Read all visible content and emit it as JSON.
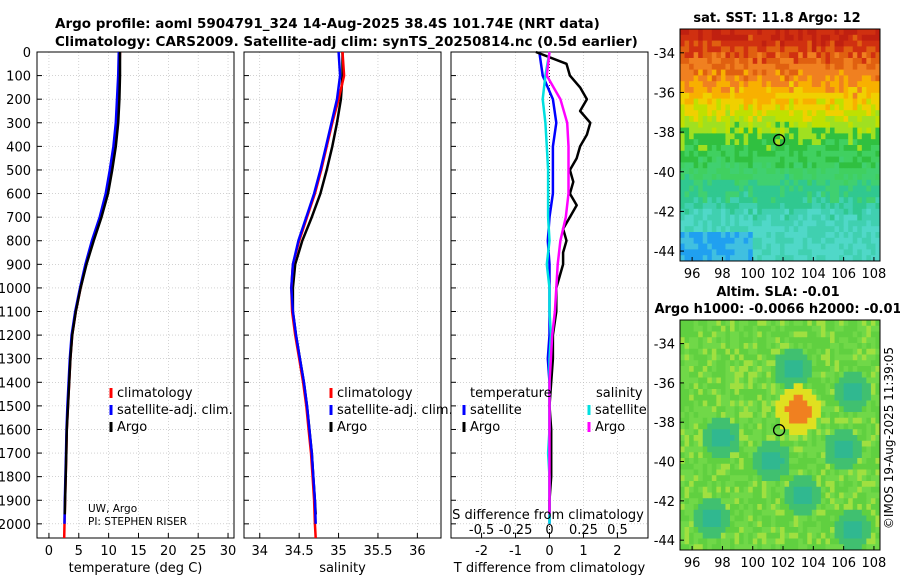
{
  "header": {
    "title_line1": "Argo profile: aoml 5904791_324 14-Aug-2025 38.4S 101.74E (NRT data)",
    "title_line2": "Climatology: CARS2009. Satellite-adj clim: synTS_20250814.nc (0.5d earlier)"
  },
  "colors": {
    "climatology": "#ff0000",
    "satellite": "#0000ff",
    "argo": "#000000",
    "salinity_satellite": "#00e0e0",
    "salinity_argo": "#ff00ff"
  },
  "chart_data": [
    {
      "type": "line",
      "id": "temperature",
      "xlabel": "temperature (deg C)",
      "ylabel": "",
      "xlim": [
        -2,
        31
      ],
      "ylim": [
        2060,
        0
      ],
      "xticks": [
        "0",
        "5",
        "10",
        "15",
        "20",
        "25",
        "30"
      ],
      "yticks": [
        "0",
        "100",
        "200",
        "300",
        "400",
        "500",
        "600",
        "700",
        "800",
        "900",
        "1000",
        "1100",
        "1200",
        "1300",
        "1400",
        "1500",
        "1600",
        "1700",
        "1800",
        "1900",
        "2000"
      ],
      "legend": [
        "climatology",
        "satellite-adj. clim.",
        "Argo"
      ],
      "note_lines": [
        "UW, Argo",
        "PI: STEPHEN RISER"
      ],
      "series": [
        {
          "name": "climatology",
          "depth": [
            0,
            100,
            200,
            300,
            400,
            500,
            600,
            700,
            800,
            900,
            1000,
            1100,
            1200,
            1300,
            1400,
            1500,
            1600,
            1700,
            1800,
            1900,
            2000,
            2060
          ],
          "values": [
            11.9,
            11.8,
            11.6,
            11.3,
            10.9,
            10.3,
            9.6,
            8.6,
            7.3,
            6.2,
            5.3,
            4.5,
            3.9,
            3.6,
            3.4,
            3.2,
            3.0,
            2.9,
            2.8,
            2.7,
            2.6,
            2.55
          ]
        },
        {
          "name": "satellite-adj. clim.",
          "depth": [
            0,
            100,
            200,
            300,
            400,
            500,
            600,
            700,
            800,
            900,
            1000,
            1100,
            1200,
            1300,
            1400,
            1500,
            1600,
            1700,
            1800,
            1900,
            2000
          ],
          "values": [
            11.7,
            11.6,
            11.4,
            11.2,
            10.8,
            10.2,
            9.5,
            8.5,
            7.2,
            6.1,
            5.2,
            4.4,
            3.8,
            3.5,
            3.3,
            3.1,
            2.95,
            2.85,
            2.75,
            2.65,
            2.6
          ]
        },
        {
          "name": "Argo",
          "depth": [
            0,
            100,
            200,
            300,
            400,
            500,
            600,
            700,
            800,
            900,
            1000,
            1100,
            1200,
            1300,
            1400,
            1500,
            1600,
            1700,
            1800,
            1900,
            1960
          ],
          "values": [
            11.9,
            11.9,
            11.8,
            11.6,
            11.2,
            10.6,
            9.9,
            8.8,
            7.5,
            6.3,
            5.3,
            4.5,
            3.9,
            3.6,
            3.4,
            3.2,
            3.0,
            2.9,
            2.8,
            2.7,
            2.65
          ]
        }
      ]
    },
    {
      "type": "line",
      "id": "salinity",
      "xlabel": "salinity",
      "xlim": [
        33.8,
        36.3
      ],
      "ylim": [
        2060,
        0
      ],
      "xticks": [
        "34",
        "34.5",
        "35",
        "35.5",
        "36"
      ],
      "legend": [
        "climatology",
        "satellite-adj. clim.",
        "Argo"
      ],
      "series": [
        {
          "name": "climatology",
          "depth": [
            0,
            100,
            200,
            300,
            400,
            500,
            600,
            700,
            800,
            900,
            1000,
            1100,
            1200,
            1300,
            1400,
            1500,
            1600,
            1700,
            1800,
            1900,
            2000,
            2060
          ],
          "values": [
            35.05,
            35.07,
            35.0,
            34.92,
            34.85,
            34.78,
            34.7,
            34.6,
            34.5,
            34.42,
            34.4,
            34.41,
            34.45,
            34.5,
            34.55,
            34.59,
            34.62,
            34.65,
            34.67,
            34.69,
            34.7,
            34.71
          ]
        },
        {
          "name": "satellite-adj. clim.",
          "depth": [
            0,
            100,
            200,
            300,
            400,
            500,
            600,
            700,
            800,
            900,
            1000,
            1100,
            1200,
            1300,
            1400,
            1500,
            1600,
            1700,
            1800,
            1900,
            2000
          ],
          "values": [
            35.0,
            35.02,
            34.98,
            34.91,
            34.84,
            34.77,
            34.69,
            34.59,
            34.49,
            34.42,
            34.4,
            34.42,
            34.46,
            34.51,
            34.56,
            34.6,
            34.63,
            34.66,
            34.68,
            34.7,
            34.71
          ]
        },
        {
          "name": "Argo",
          "depth": [
            0,
            100,
            200,
            300,
            400,
            500,
            600,
            700,
            800,
            900,
            1000,
            1100,
            1200,
            1300,
            1400,
            1500,
            1600,
            1700,
            1800,
            1900,
            1960
          ],
          "values": [
            35.05,
            35.05,
            35.03,
            34.98,
            34.92,
            34.85,
            34.77,
            34.66,
            34.54,
            34.45,
            34.42,
            34.42,
            34.46,
            34.51,
            34.56,
            34.6,
            34.63,
            34.66,
            34.68,
            34.7,
            34.71
          ]
        }
      ]
    },
    {
      "type": "line",
      "id": "difference",
      "xlabel": "T difference from climatology",
      "xlabel_top": "S difference from climatology",
      "xlim": [
        -2.9,
        2.9
      ],
      "ylim": [
        2060,
        0
      ],
      "xticks": [
        "-2",
        "-1",
        "0",
        "1",
        "2"
      ],
      "xticks_salinity": [
        "-0.5",
        "-0.25",
        "0",
        "0.25",
        "0.5"
      ],
      "legend_temperature_title": "temperature",
      "legend_salinity_title": "salinity",
      "legend_temperature": [
        "satellite",
        "Argo"
      ],
      "legend_salinity": [
        "satellite",
        "Argo"
      ],
      "series": [
        {
          "name": "temperature satellite",
          "depth": [
            0,
            100,
            200,
            300,
            400,
            500,
            600,
            700,
            800,
            900,
            1000,
            1100,
            1200,
            1300,
            1400,
            1500,
            1600,
            1700,
            1800,
            1900,
            2000
          ],
          "values": [
            -0.3,
            -0.2,
            0.1,
            0.2,
            0.1,
            0.1,
            0.1,
            0.0,
            -0.05,
            0.0,
            0.0,
            0.0,
            0.0,
            -0.05,
            0.0,
            0.0,
            0.0,
            0.0,
            0.0,
            0.0,
            0.0
          ]
        },
        {
          "name": "temperature Argo",
          "depth": [
            0,
            50,
            100,
            150,
            200,
            250,
            300,
            350,
            400,
            450,
            500,
            550,
            600,
            650,
            700,
            750,
            800,
            850,
            900,
            950,
            1000,
            1100,
            1200,
            1300,
            1400,
            1500,
            1600,
            1700,
            1800,
            1900,
            1960
          ],
          "values": [
            -0.4,
            0.5,
            0.6,
            0.9,
            1.1,
            0.9,
            1.2,
            1.1,
            0.9,
            0.8,
            0.6,
            0.7,
            0.6,
            0.8,
            0.6,
            0.4,
            0.5,
            0.4,
            0.4,
            0.3,
            0.2,
            0.2,
            0.1,
            0.1,
            0.05,
            0.0,
            0.05,
            0.05,
            0.05,
            0.0,
            0.0
          ]
        },
        {
          "name": "salinity satellite",
          "depth": [
            0,
            100,
            200,
            300,
            400,
            500,
            600,
            700,
            800,
            900,
            1000,
            1100,
            1200,
            1300,
            1400,
            1500,
            1600,
            1700,
            1800,
            1900,
            2000
          ],
          "values": [
            0.0,
            -0.03,
            -0.05,
            -0.03,
            -0.02,
            -0.01,
            -0.01,
            -0.01,
            0.0,
            -0.02,
            0.0,
            0.0,
            0.01,
            0.0,
            0.0,
            0.0,
            0.0,
            -0.01,
            0.0,
            0.0,
            0.0
          ]
        },
        {
          "name": "salinity Argo",
          "depth": [
            0,
            100,
            200,
            300,
            400,
            500,
            600,
            700,
            800,
            900,
            1000,
            1100,
            1200,
            1300,
            1400,
            1500,
            1600,
            1700,
            1800,
            1900,
            1960
          ],
          "values": [
            0.0,
            -0.02,
            0.08,
            0.13,
            0.14,
            0.14,
            0.14,
            0.12,
            0.08,
            0.06,
            0.05,
            0.04,
            0.02,
            0.01,
            0.0,
            0.0,
            0.0,
            0.0,
            0.0,
            0.0,
            0.0
          ]
        }
      ]
    },
    {
      "type": "heatmap",
      "id": "sst_map",
      "title": "sat. SST: 11.8 Argo: 12",
      "xlim": [
        95.2,
        108.4
      ],
      "ylim": [
        -44.5,
        -32.8
      ],
      "xticks": [
        "96",
        "98",
        "100",
        "102",
        "104",
        "106",
        "108"
      ],
      "yticks": [
        "-34",
        "-36",
        "-38",
        "-40",
        "-42",
        "-44"
      ],
      "marker_lon": 101.74,
      "marker_lat": -38.4
    },
    {
      "type": "heatmap",
      "id": "sla_map",
      "title_line1": "Altim. SLA: -0.01",
      "title_line2": "Argo h1000: -0.0066 h2000: -0.01",
      "xlim": [
        95.2,
        108.4
      ],
      "ylim": [
        -44.5,
        -32.8
      ],
      "xticks": [
        "96",
        "98",
        "100",
        "102",
        "104",
        "106",
        "108"
      ],
      "yticks": [
        "-34",
        "-36",
        "-38",
        "-40",
        "-42",
        "-44"
      ],
      "marker_lon": 101.74,
      "marker_lat": -38.4,
      "side_note": "©IMOS 19-Aug-2025 11:39:05"
    }
  ]
}
